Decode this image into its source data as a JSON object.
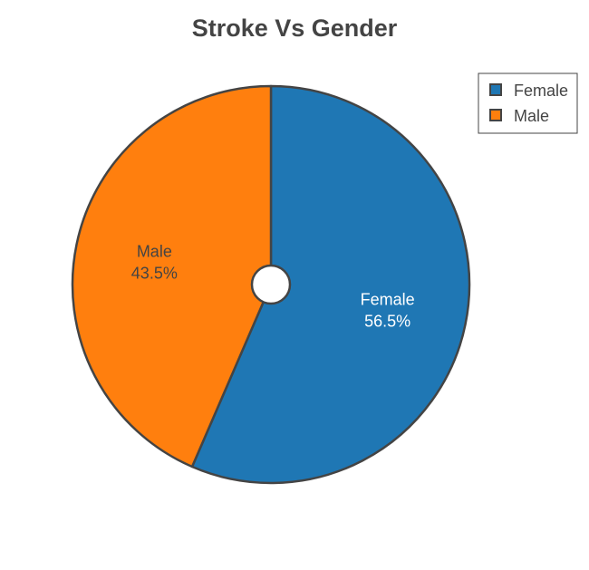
{
  "chart_data": {
    "type": "pie",
    "title": "Stroke Vs Gender",
    "categories": [
      "Female",
      "Male"
    ],
    "values": [
      56.5,
      43.5
    ],
    "value_unit": "%",
    "hole": true,
    "colors": [
      "#1f77b4",
      "#ff7f0e"
    ],
    "label_colors": [
      "#ffffff",
      "#444444"
    ],
    "slice_border_color": "#444444",
    "legend": {
      "position": "top-right",
      "items": [
        "Female",
        "Male"
      ]
    }
  }
}
